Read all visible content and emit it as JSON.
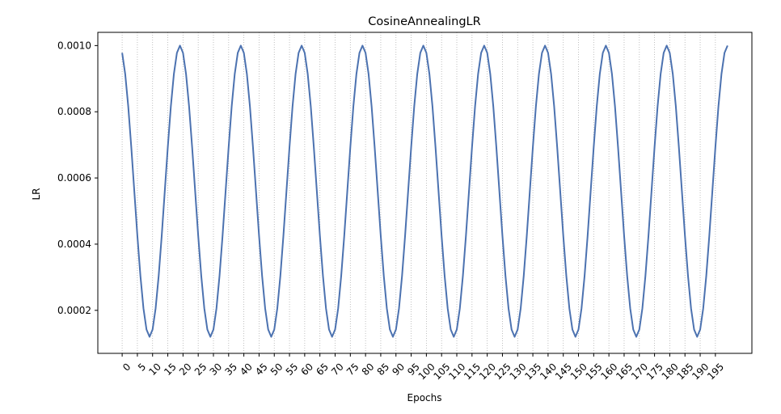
{
  "chart_data": {
    "type": "line",
    "title": "CosineAnnealingLR",
    "xlabel": "Epochs",
    "ylabel": "LR",
    "xlim": [
      -8,
      207
    ],
    "ylim": [
      7e-05,
      0.00104
    ],
    "grid": "x-dotted",
    "x_ticks": [
      0,
      5,
      10,
      15,
      20,
      25,
      30,
      35,
      40,
      45,
      50,
      55,
      60,
      65,
      70,
      75,
      80,
      85,
      90,
      95,
      100,
      105,
      110,
      115,
      120,
      125,
      130,
      135,
      140,
      145,
      150,
      155,
      160,
      165,
      170,
      175,
      180,
      185,
      190,
      195
    ],
    "x_tick_labels": [
      "0",
      "5",
      "10",
      "15",
      "20",
      "25",
      "30",
      "35",
      "40",
      "45",
      "50",
      "55",
      "60",
      "65",
      "70",
      "75",
      "80",
      "85",
      "90",
      "95",
      "100",
      "105",
      "110",
      "115",
      "120",
      "125",
      "130",
      "135",
      "140",
      "145",
      "150",
      "155",
      "160",
      "165",
      "170",
      "175",
      "180",
      "185",
      "190",
      "195"
    ],
    "y_ticks": [
      0.0002,
      0.0004,
      0.0006,
      0.0008,
      0.001
    ],
    "y_tick_labels": [
      "0.0002",
      "0.0004",
      "0.0006",
      "0.0008",
      "0.0010"
    ],
    "series": [
      {
        "color": "#4c72b0",
        "x": [
          0,
          1,
          2,
          3,
          4,
          5,
          6,
          7,
          8,
          9,
          10,
          11,
          12,
          13,
          14,
          15,
          16,
          17,
          18,
          19,
          20,
          21,
          22,
          23,
          24,
          25,
          26,
          27,
          28,
          29,
          30,
          31,
          32,
          33,
          34,
          35,
          36,
          37,
          38,
          39,
          40,
          41,
          42,
          43,
          44,
          45,
          46,
          47,
          48,
          49,
          50,
          51,
          52,
          53,
          54,
          55,
          56,
          57,
          58,
          59,
          60,
          61,
          62,
          63,
          64,
          65,
          66,
          67,
          68,
          69,
          70,
          71,
          72,
          73,
          74,
          75,
          76,
          77,
          78,
          79,
          80,
          81,
          82,
          83,
          84,
          85,
          86,
          87,
          88,
          89,
          90,
          91,
          92,
          93,
          94,
          95,
          96,
          97,
          98,
          99,
          100,
          101,
          102,
          103,
          104,
          105,
          106,
          107,
          108,
          109,
          110,
          111,
          112,
          113,
          114,
          115,
          116,
          117,
          118,
          119,
          120,
          121,
          122,
          123,
          124,
          125,
          126,
          127,
          128,
          129,
          130,
          131,
          132,
          133,
          134,
          135,
          136,
          137,
          138,
          139,
          140,
          141,
          142,
          143,
          144,
          145,
          146,
          147,
          148,
          149,
          150,
          151,
          152,
          153,
          154,
          155,
          156,
          157,
          158,
          159,
          160,
          161,
          162,
          163,
          164,
          165,
          166,
          167,
          168,
          169,
          170,
          171,
          172,
          173,
          174,
          175,
          176,
          177,
          178,
          179,
          180,
          181,
          182,
          183,
          184,
          185,
          186,
          187,
          188,
          189,
          190,
          191,
          192,
          193,
          194,
          195,
          196,
          197,
          198,
          199
        ],
        "values": [
          0.000978,
          0.000914,
          0.000816,
          0.000693,
          0.000559,
          0.000425,
          0.000304,
          0.000206,
          0.000142,
          0.00012,
          0.000142,
          0.000206,
          0.000304,
          0.000425,
          0.000559,
          0.000693,
          0.000816,
          0.000914,
          0.000978,
          0.001,
          0.000978,
          0.000914,
          0.000816,
          0.000693,
          0.000559,
          0.000425,
          0.000304,
          0.000206,
          0.000142,
          0.00012,
          0.000142,
          0.000206,
          0.000304,
          0.000425,
          0.000559,
          0.000693,
          0.000816,
          0.000914,
          0.000978,
          0.001,
          0.000978,
          0.000914,
          0.000816,
          0.000693,
          0.000559,
          0.000425,
          0.000304,
          0.000206,
          0.000142,
          0.00012,
          0.000142,
          0.000206,
          0.000304,
          0.000425,
          0.000559,
          0.000693,
          0.000816,
          0.000914,
          0.000978,
          0.001,
          0.000978,
          0.000914,
          0.000816,
          0.000693,
          0.000559,
          0.000425,
          0.000304,
          0.000206,
          0.000142,
          0.00012,
          0.000142,
          0.000206,
          0.000304,
          0.000425,
          0.000559,
          0.000693,
          0.000816,
          0.000914,
          0.000978,
          0.001,
          0.000978,
          0.000914,
          0.000816,
          0.000693,
          0.000559,
          0.000425,
          0.000304,
          0.000206,
          0.000142,
          0.00012,
          0.000142,
          0.000206,
          0.000304,
          0.000425,
          0.000559,
          0.000693,
          0.000816,
          0.000914,
          0.000978,
          0.001,
          0.000978,
          0.000914,
          0.000816,
          0.000693,
          0.000559,
          0.000425,
          0.000304,
          0.000206,
          0.000142,
          0.00012,
          0.000142,
          0.000206,
          0.000304,
          0.000425,
          0.000559,
          0.000693,
          0.000816,
          0.000914,
          0.000978,
          0.001,
          0.000978,
          0.000914,
          0.000816,
          0.000693,
          0.000559,
          0.000425,
          0.000304,
          0.000206,
          0.000142,
          0.00012,
          0.000142,
          0.000206,
          0.000304,
          0.000425,
          0.000559,
          0.000693,
          0.000816,
          0.000914,
          0.000978,
          0.001,
          0.000978,
          0.000914,
          0.000816,
          0.000693,
          0.000559,
          0.000425,
          0.000304,
          0.000206,
          0.000142,
          0.00012,
          0.000142,
          0.000206,
          0.000304,
          0.000425,
          0.000559,
          0.000693,
          0.000816,
          0.000914,
          0.000978,
          0.001,
          0.000978,
          0.000914,
          0.000816,
          0.000693,
          0.000559,
          0.000425,
          0.000304,
          0.000206,
          0.000142,
          0.00012,
          0.000142,
          0.000206,
          0.000304,
          0.000425,
          0.000559,
          0.000693,
          0.000816,
          0.000914,
          0.000978,
          0.001,
          0.000978,
          0.000914,
          0.000816,
          0.000693,
          0.000559,
          0.000425,
          0.000304,
          0.000206,
          0.000142,
          0.00012,
          0.000142,
          0.000206,
          0.000304,
          0.000425,
          0.000559,
          0.000693,
          0.000816,
          0.000914,
          0.000978,
          0.001
        ]
      }
    ]
  }
}
